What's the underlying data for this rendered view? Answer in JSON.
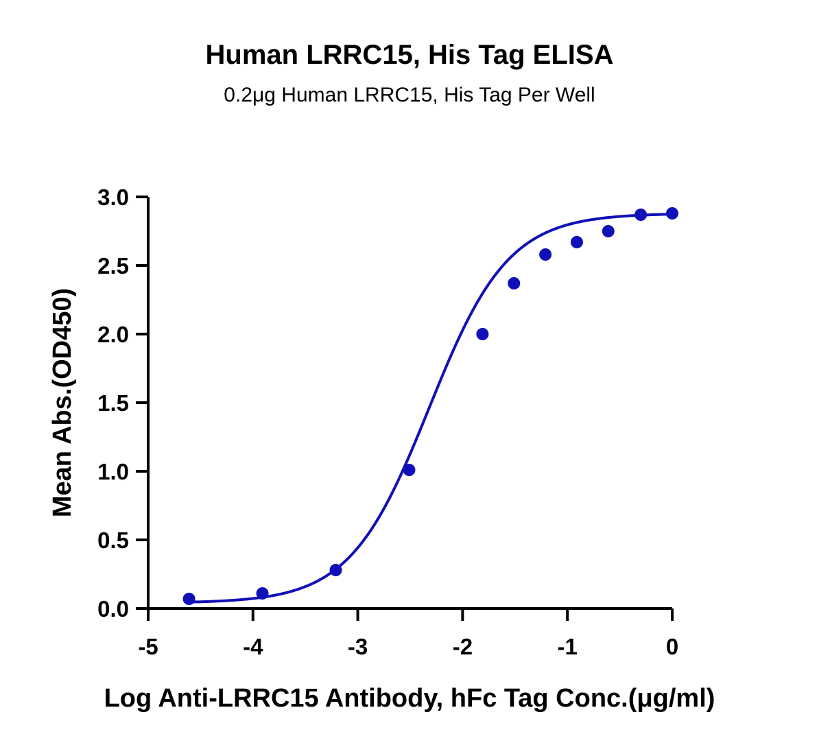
{
  "chart_data": {
    "type": "scatter",
    "title": "Human LRRC15, His Tag ELISA",
    "subtitle": "0.2μg Human LRRC15, His Tag Per Well",
    "xlabel": "Log Anti-LRRC15 Antibody, hFc Tag Conc.(μg/ml)",
    "ylabel": "Mean Abs.(OD450)",
    "xlim": [
      -5,
      0
    ],
    "ylim": [
      0,
      3.0
    ],
    "x_ticks": [
      -5,
      -4,
      -3,
      -2,
      -1,
      0
    ],
    "x_tick_labels": [
      "-5",
      "-4",
      "-3",
      "-2",
      "-1",
      "0"
    ],
    "y_ticks": [
      0,
      0.5,
      1.0,
      1.5,
      2.0,
      2.5,
      3.0
    ],
    "y_tick_labels": [
      "0.0",
      "0.5",
      "1.0",
      "1.5",
      "2.0",
      "2.5",
      "3.0"
    ],
    "grid": false,
    "color": "#1010b8",
    "series": [
      {
        "x": [
          -4.61,
          -3.91,
          -3.21,
          -2.51,
          -1.81,
          -1.51,
          -1.21,
          -0.91,
          -0.61,
          -0.3,
          0.0
        ],
        "y": [
          0.07,
          0.11,
          0.28,
          1.01,
          2.0,
          2.37,
          2.58,
          2.67,
          2.75,
          2.87,
          2.88
        ]
      }
    ],
    "fit": {
      "model": "4PL",
      "bottom": 0.04,
      "top": 2.88,
      "logEC50": -2.32,
      "hill": 1.15
    }
  }
}
